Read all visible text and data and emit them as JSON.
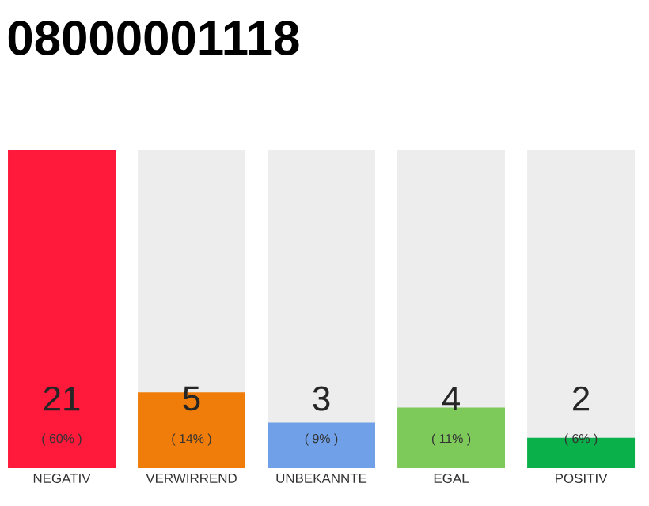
{
  "chart_data": {
    "type": "bar",
    "title": "08000001118",
    "categories": [
      "NEGATIV",
      "VERWIRREND",
      "UNBEKANNTE",
      "EGAL",
      "POSITIV"
    ],
    "values": [
      21,
      5,
      3,
      4,
      2
    ],
    "colors": [
      "#ff1a3c",
      "#f07d0a",
      "#6fa0e8",
      "#7dc95a",
      "#0ab04a"
    ],
    "data_labels": true,
    "annotations": [
      "( 60% )",
      "( 14% )",
      "( 9% )",
      "( 11% )",
      "( 6% )"
    ]
  }
}
